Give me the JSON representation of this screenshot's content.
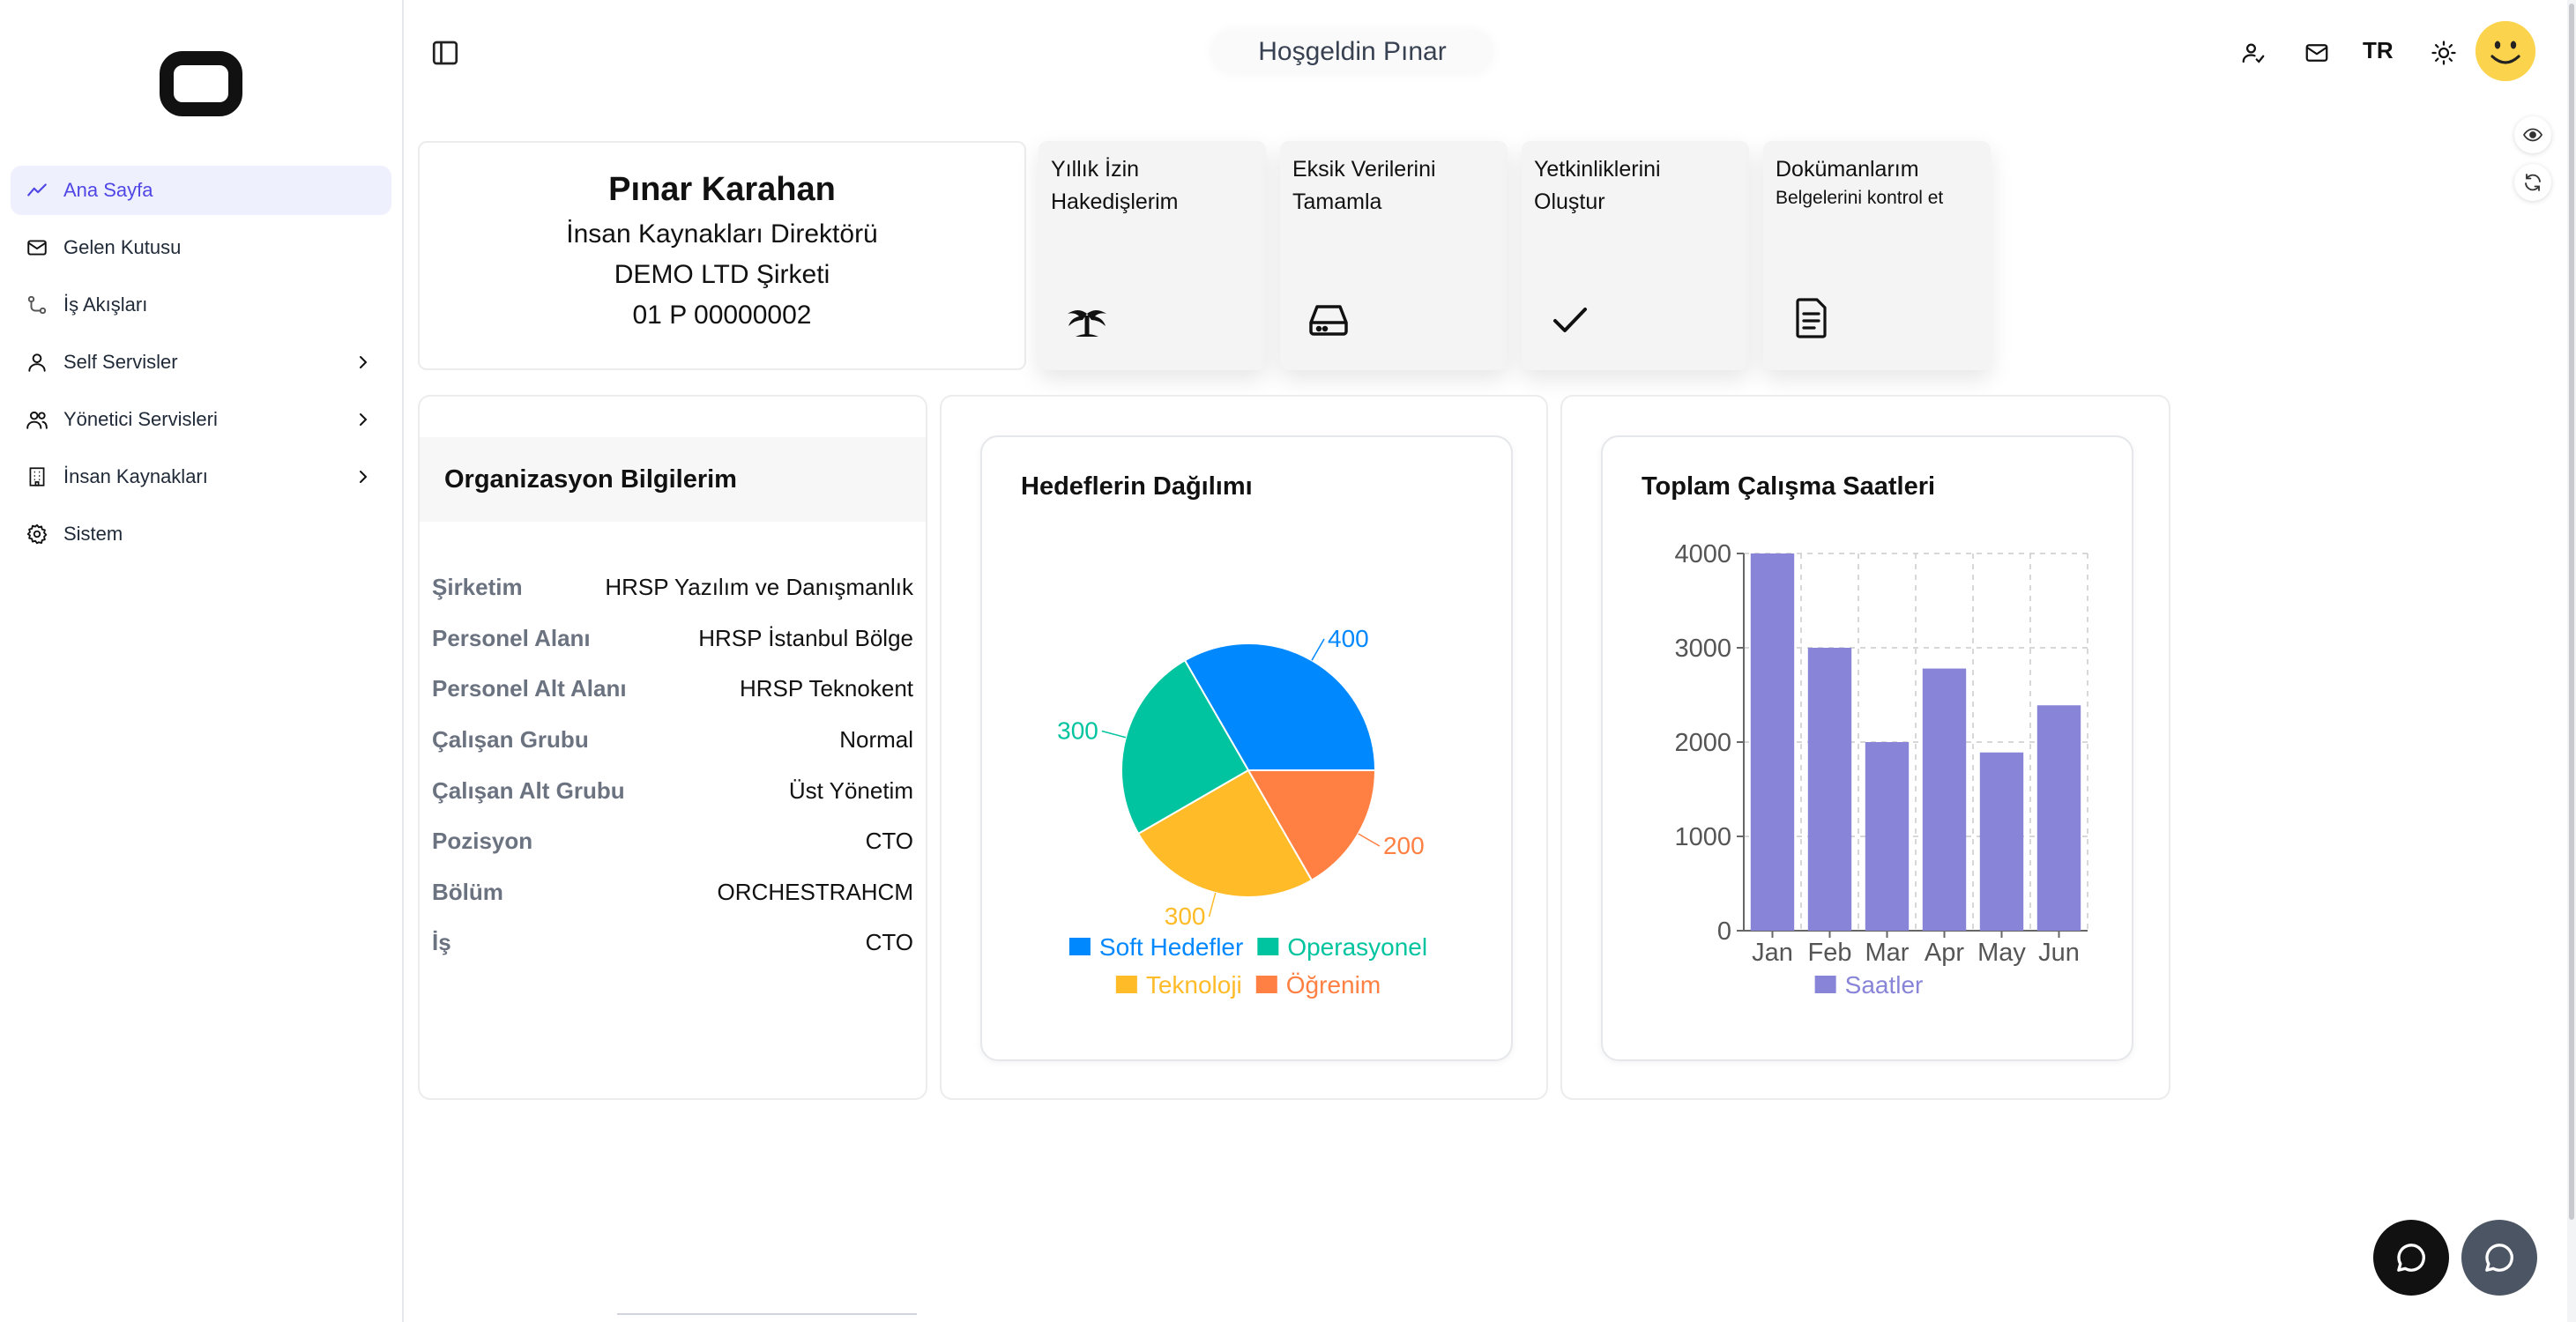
{
  "sidebar": {
    "items": [
      {
        "label": "Ana Sayfa",
        "icon": "trend-icon",
        "active": true
      },
      {
        "label": "Gelen Kutusu",
        "icon": "mail-icon"
      },
      {
        "label": "İş Akışları",
        "icon": "workflow-icon"
      },
      {
        "label": "Self Servisler",
        "icon": "user-icon",
        "has_children": true
      },
      {
        "label": "Yönetici Servisleri",
        "icon": "users-icon",
        "has_children": true
      },
      {
        "label": "İnsan Kaynakları",
        "icon": "building-icon",
        "has_children": true
      },
      {
        "label": "Sistem",
        "icon": "gear-icon"
      }
    ]
  },
  "header": {
    "greeting": "Hoşgeldin Pınar",
    "language": "TR"
  },
  "profile": {
    "name": "Pınar Karahan",
    "title": "İnsan Kaynakları Direktörü",
    "company": "DEMO LTD Şirketi",
    "employee_no": "01 P 00000002"
  },
  "tiles": [
    {
      "title": "Yıllık İzin Hakedişlerim",
      "subtitle": "",
      "icon": "palm-tree-icon"
    },
    {
      "title": "Eksik Verilerini Tamamla",
      "subtitle": "",
      "icon": "hard-drive-icon"
    },
    {
      "title": "Yetkinliklerini Oluştur",
      "subtitle": "",
      "icon": "check-icon"
    },
    {
      "title": "Dokümanlarım",
      "subtitle": "Belgelerini kontrol et",
      "icon": "document-icon"
    }
  ],
  "organization": {
    "title": "Organizasyon Bilgilerim",
    "rows": [
      {
        "label": "Şirketim",
        "value": "HRSP Yazılım ve Danışmanlık"
      },
      {
        "label": "Personel Alanı",
        "value": "HRSP İstanbul Bölge"
      },
      {
        "label": "Personel Alt Alanı",
        "value": "HRSP Teknokent"
      },
      {
        "label": "Çalışan Grubu",
        "value": "Normal"
      },
      {
        "label": "Çalışan Alt Grubu",
        "value": "Üst Yönetim"
      },
      {
        "label": "Pozisyon",
        "value": "CTO"
      },
      {
        "label": "Bölüm",
        "value": "ORCHESTRAHCM"
      },
      {
        "label": "İş",
        "value": "CTO"
      }
    ]
  },
  "chart_data": [
    {
      "type": "pie",
      "title": "Hedeflerin Dağılımı",
      "categories": [
        "Soft Hedefler",
        "Operasyonel",
        "Teknoloji",
        "Öğrenim"
      ],
      "values": [
        400,
        300,
        300,
        200
      ],
      "colors": [
        "#0088fe",
        "#00c49f",
        "#ffbb28",
        "#ff8042"
      ],
      "legend": "bottom"
    },
    {
      "type": "bar",
      "title": "Toplam Çalışma Saatleri",
      "categories": [
        "Jan",
        "Feb",
        "Mar",
        "Apr",
        "May",
        "Jun"
      ],
      "series": [
        {
          "name": "Saatler",
          "values": [
            4000,
            3000,
            2000,
            2780,
            1890,
            2390
          ]
        }
      ],
      "ylim": [
        0,
        4000
      ],
      "yticks": [
        0,
        1000,
        2000,
        3000,
        4000
      ],
      "grid": true,
      "color": "#8884d8",
      "legend": "bottom"
    }
  ]
}
